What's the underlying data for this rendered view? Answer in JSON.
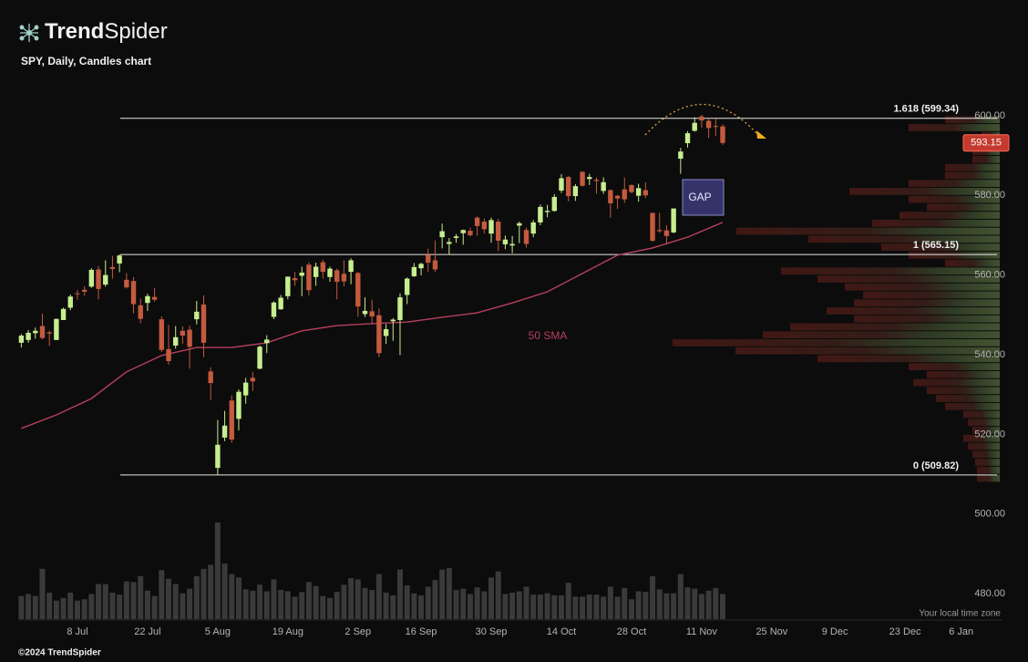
{
  "logo": {
    "bold": "Trend",
    "light": "Spider"
  },
  "footer": "©2024 TrendSpider",
  "chart_data": {
    "type": "candlestick",
    "title": "SPY, Daily, Candles chart",
    "timezone_note": "Your local time zone",
    "up_color": "#c6ee8f",
    "down_color": "#c45a3f",
    "xlim": [
      -0.44,
      139.5
    ],
    "xticks": [
      {
        "value": 8,
        "label": "8 Jul"
      },
      {
        "value": 18,
        "label": "22 Jul"
      },
      {
        "value": 28,
        "label": "5 Aug"
      },
      {
        "value": 38,
        "label": "19 Aug"
      },
      {
        "value": 48,
        "label": "2 Sep"
      },
      {
        "value": 57,
        "label": "16 Sep"
      },
      {
        "value": 67,
        "label": "30 Sep"
      },
      {
        "value": 77,
        "label": "14 Oct"
      },
      {
        "value": 87,
        "label": "28 Oct"
      },
      {
        "value": 97,
        "label": "11 Nov"
      },
      {
        "value": 107,
        "label": "25 Nov"
      },
      {
        "value": 116,
        "label": "9 Dec"
      },
      {
        "value": 126,
        "label": "23 Dec"
      },
      {
        "value": 134,
        "label": "6 Jan"
      }
    ],
    "ylim": [
      473.4,
      605.0
    ],
    "yticks": [
      {
        "value": 600,
        "label": "600.00"
      },
      {
        "value": 580,
        "label": "580.00"
      },
      {
        "value": 560,
        "label": "560.00"
      },
      {
        "value": 540,
        "label": "540.00"
      },
      {
        "value": 520,
        "label": "520.00"
      },
      {
        "value": 500,
        "label": "500.00"
      },
      {
        "value": 480,
        "label": "480.00"
      }
    ],
    "open": [
      543.0,
      543.7,
      545.4,
      547.2,
      545.6,
      543.7,
      548.7,
      551.8,
      555.4,
      556.3,
      557.1,
      561.4,
      557.6,
      562.0,
      562.9,
      558.8,
      558.5,
      552.4,
      553.0,
      554.5,
      548.9,
      541.4,
      542.3,
      546.0,
      546.3,
      548.9,
      552.6,
      535.8,
      511.6,
      519.2,
      528.5,
      523.9,
      529.8,
      534.2,
      536.5,
      542.9,
      549.5,
      551.4,
      554.7,
      559.2,
      559.8,
      562.6,
      559.5,
      563.2,
      559.5,
      561.2,
      560.3,
      560.8,
      560.5,
      550.2,
      550.9,
      549.9,
      544.7,
      548.4,
      548.7,
      555.0,
      559.7,
      561.7,
      565.1,
      563.7,
      569.5,
      567.8,
      569.3,
      570.5,
      571.1,
      574.4,
      573.4,
      570.4,
      573.4,
      567.7,
      567.4,
      572.4,
      571.3,
      570.4,
      573.2,
      575.8,
      576.1,
      581.2,
      584.6,
      579.8,
      585.9,
      584.1,
      583.9,
      581.1,
      581.3,
      579.9,
      581.5,
      582.6,
      579.9,
      581.3,
      575.6,
      571.3,
      571.2,
      570.7,
      589.2,
      593.1,
      596.2,
      599.8,
      598.7,
      597.4,
      597.3
    ],
    "high": [
      545.2,
      546.2,
      546.8,
      550.3,
      546.0,
      549.0,
      551.8,
      555.1,
      556.2,
      557.2,
      561.7,
      562.3,
      563.7,
      564.8,
      565.2,
      560.5,
      559.5,
      554.1,
      555.3,
      556.7,
      549.6,
      547.5,
      547.2,
      547.1,
      547.3,
      553.5,
      554.9,
      536.8,
      523.6,
      525.9,
      529.8,
      531.3,
      534.2,
      535.7,
      542.3,
      544.9,
      553.4,
      555.0,
      559.6,
      560.8,
      562.1,
      563.2,
      563.1,
      563.9,
      562.1,
      561.6,
      563.7,
      564.2,
      560.8,
      554.4,
      553.8,
      551.6,
      547.7,
      549.2,
      555.4,
      559.4,
      563.0,
      563.1,
      566.6,
      568.7,
      572.9,
      569.3,
      570.3,
      571.4,
      571.9,
      574.7,
      574.2,
      574.4,
      574.1,
      569.9,
      569.8,
      573.4,
      571.9,
      573.8,
      577.7,
      577.6,
      580.3,
      585.3,
      584.9,
      582.8,
      586.1,
      585.4,
      584.5,
      584.5,
      581.5,
      580.1,
      584.5,
      582.7,
      582.9,
      583.3,
      575.6,
      575.6,
      572.5,
      576.7,
      591.9,
      596.1,
      599.6,
      600.2,
      599.3,
      599.2,
      597.8
    ],
    "low": [
      541.8,
      543.0,
      544.0,
      543.9,
      542.2,
      543.7,
      548.7,
      551.2,
      553.8,
      554.8,
      556.8,
      553.9,
      557.1,
      559.1,
      560.7,
      556.6,
      550.4,
      547.9,
      551.0,
      553.3,
      540.7,
      537.5,
      541.5,
      542.7,
      536.5,
      547.6,
      539.4,
      528.6,
      509.8,
      518.3,
      517.9,
      521.0,
      527.7,
      530.9,
      536.3,
      540.4,
      548.9,
      551.3,
      553.9,
      557.3,
      554.7,
      554.9,
      557.3,
      559.1,
      558.3,
      553.9,
      557.2,
      557.7,
      549.5,
      549.5,
      547.7,
      539.4,
      542.7,
      543.5,
      539.9,
      552.7,
      559.5,
      559.9,
      560.8,
      560.8,
      566.7,
      565.2,
      568.1,
      567.6,
      569.7,
      569.9,
      570.4,
      568.1,
      566.0,
      566.5,
      565.5,
      568.0,
      566.9,
      569.5,
      572.5,
      574.5,
      575.9,
      580.6,
      578.5,
      578.6,
      582.2,
      582.6,
      580.4,
      580.4,
      574.4,
      576.6,
      578.1,
      580.5,
      578.4,
      579.3,
      568.4,
      570.6,
      567.9,
      570.5,
      585.4,
      592.0,
      596.0,
      597.0,
      594.4,
      594.9,
      592.7
    ],
    "close": [
      544.8,
      545.5,
      546.0,
      544.2,
      545.3,
      549.0,
      551.5,
      554.6,
      555.3,
      555.8,
      561.3,
      556.5,
      560.0,
      561.5,
      564.9,
      556.9,
      552.7,
      549.0,
      554.7,
      553.8,
      541.2,
      538.4,
      544.4,
      544.8,
      542.0,
      550.8,
      543.0,
      532.9,
      517.4,
      522.2,
      518.7,
      530.7,
      533.0,
      533.3,
      542.0,
      543.8,
      553.1,
      554.3,
      559.6,
      558.7,
      560.6,
      556.2,
      562.1,
      560.8,
      561.6,
      558.3,
      558.4,
      563.7,
      552.1,
      551.0,
      549.6,
      540.4,
      546.4,
      548.8,
      554.4,
      559.1,
      562.0,
      562.8,
      563.1,
      561.4,
      571.0,
      568.3,
      569.7,
      571.3,
      570.0,
      572.3,
      571.5,
      573.8,
      568.6,
      568.9,
      567.8,
      573.0,
      567.8,
      573.2,
      577.1,
      576.1,
      579.6,
      584.3,
      579.8,
      582.3,
      582.4,
      584.6,
      583.6,
      583.3,
      578.0,
      579.2,
      579.0,
      580.8,
      581.8,
      580.0,
      568.6,
      571.0,
      569.8,
      576.7,
      591.0,
      595.6,
      598.2,
      598.8,
      596.9,
      597.2,
      593.15
    ],
    "volume": {
      "color": "#3a3a3a",
      "values": [
        35,
        38,
        35,
        76,
        40,
        28,
        32,
        40,
        28,
        30,
        38,
        53,
        53,
        40,
        37,
        57,
        56,
        65,
        43,
        35,
        74,
        61,
        53,
        39,
        46,
        65,
        76,
        82,
        146,
        84,
        68,
        63,
        45,
        43,
        52,
        42,
        60,
        44,
        42,
        34,
        41,
        56,
        50,
        35,
        32,
        41,
        52,
        62,
        60,
        47,
        44,
        68,
        40,
        36,
        75,
        51,
        39,
        36,
        49,
        59,
        75,
        77,
        44,
        46,
        38,
        48,
        42,
        63,
        72,
        38,
        40,
        42,
        49,
        37,
        37,
        39,
        36,
        36,
        55,
        34,
        34,
        37,
        37,
        34,
        49,
        34,
        47,
        30,
        42,
        41,
        65,
        45,
        39,
        39,
        68,
        48,
        46,
        38,
        43,
        47,
        38
      ]
    },
    "series": [
      {
        "name": "50 SMA",
        "color": "#b8405e",
        "x": [
          0,
          5,
          10,
          15,
          20,
          25,
          30,
          35,
          40,
          45,
          50,
          55,
          60,
          65,
          70,
          75,
          80,
          85,
          90,
          95,
          100
        ],
        "values": [
          521.5,
          524.9,
          529.0,
          535.7,
          539.8,
          541.8,
          541.8,
          543.0,
          546.0,
          547.3,
          547.8,
          548.2,
          549.4,
          550.5,
          553.0,
          555.8,
          560.4,
          565.0,
          566.8,
          569.5,
          573.2
        ]
      }
    ],
    "fib_levels": [
      {
        "label": "1.618 (599.34)",
        "value": 599.34
      },
      {
        "label": "1 (565.15)",
        "value": 565.15
      },
      {
        "label": "0 (509.82)",
        "value": 509.82
      }
    ],
    "annotation": "GAP",
    "last_price": 593.15,
    "volume_profile": {
      "bins": [
        508,
        510,
        512,
        514,
        516,
        518,
        520,
        522,
        524,
        526,
        528,
        530,
        532,
        534,
        536,
        538,
        540,
        542,
        544,
        546,
        548,
        550,
        552,
        554,
        556,
        558,
        560,
        562,
        564,
        566,
        568,
        570,
        572,
        574,
        576,
        578,
        580,
        582,
        584,
        586,
        588,
        590,
        592,
        594,
        596,
        598,
        600
      ],
      "values": [
        25,
        25,
        27,
        30,
        35,
        40,
        30,
        35,
        40,
        60,
        70,
        80,
        95,
        80,
        100,
        200,
        290,
        359,
        260,
        230,
        160,
        190,
        160,
        150,
        170,
        200,
        240,
        60,
        100,
        130,
        210,
        289,
        140,
        110,
        80,
        100,
        165,
        100,
        60,
        60,
        30,
        30,
        40,
        20,
        100,
        60
      ]
    }
  }
}
